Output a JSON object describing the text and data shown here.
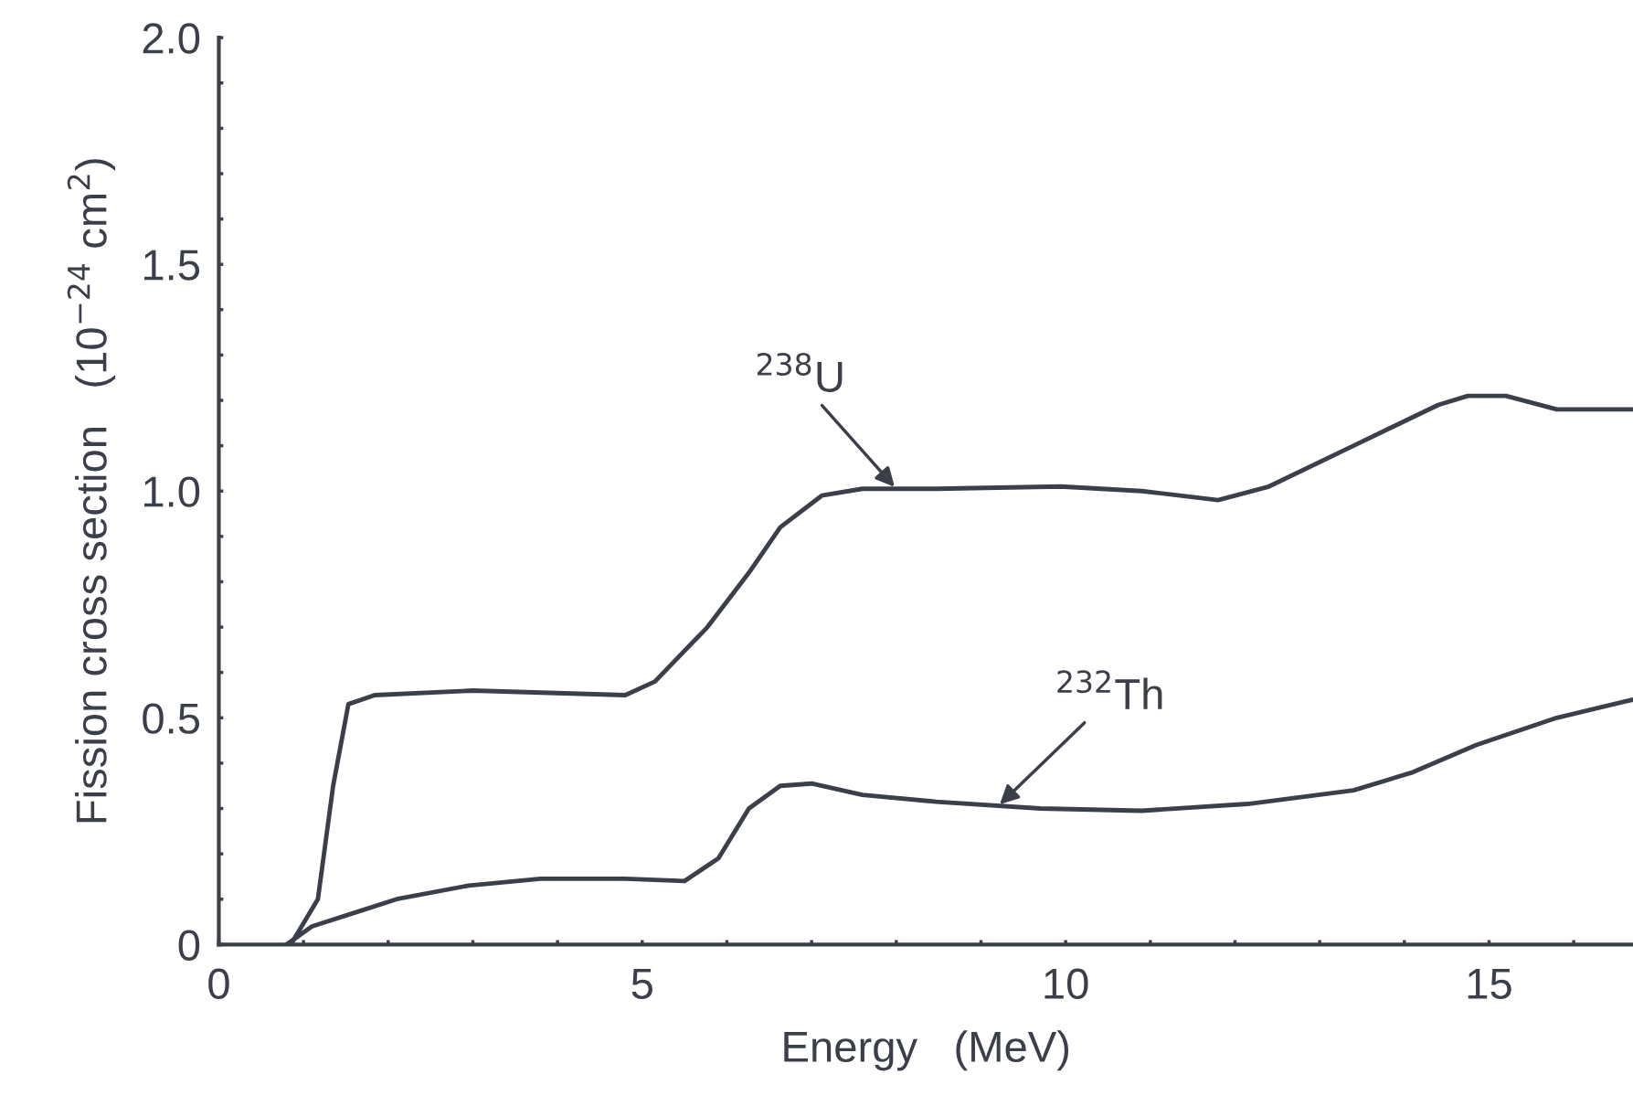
{
  "chart_data": {
    "type": "line",
    "xlabel": "Energy   (MeV)",
    "ylabel": "Fission cross section   (10$^{−24}$ cm$^{2}$)",
    "xlim": [
      0,
      16.7
    ],
    "ylim": [
      0,
      2.0
    ],
    "xticks": [
      0,
      {
        "value": 1,
        "label": null
      },
      {
        "value": 2,
        "label": null
      },
      {
        "value": 3,
        "label": null
      },
      {
        "value": 4,
        "label": null
      },
      5,
      {
        "value": 6,
        "label": null
      },
      {
        "value": 7,
        "label": null
      },
      {
        "value": 8,
        "label": null
      },
      {
        "value": 9,
        "label": null
      },
      10,
      {
        "value": 11,
        "label": null
      },
      {
        "value": 12,
        "label": null
      },
      {
        "value": 13,
        "label": null
      },
      {
        "value": 14,
        "label": null
      },
      15,
      {
        "value": 16,
        "label": null
      }
    ],
    "yticks": [
      0,
      {
        "value": 0.1,
        "label": null
      },
      {
        "value": 0.2,
        "label": null
      },
      {
        "value": 0.3,
        "label": null
      },
      {
        "value": 0.4,
        "label": null
      },
      0.5,
      {
        "value": 0.6,
        "label": null
      },
      {
        "value": 0.7,
        "label": null
      },
      {
        "value": 0.8,
        "label": null
      },
      {
        "value": 0.9,
        "label": null
      },
      {
        "value": 1.0,
        "label": "1.0"
      },
      {
        "value": 1.1,
        "label": null
      },
      {
        "value": 1.2,
        "label": null
      },
      {
        "value": 1.3,
        "label": null
      },
      {
        "value": 1.4,
        "label": null
      },
      1.5,
      {
        "value": 1.6,
        "label": null
      },
      {
        "value": 1.7,
        "label": null
      },
      {
        "value": 1.8,
        "label": null
      },
      {
        "value": 1.9,
        "label": null
      },
      {
        "value": 2.0,
        "label": "2.0"
      }
    ],
    "grid": false,
    "legend": false,
    "marker": "none",
    "line_style": "solid",
    "series": [
      {
        "color": "#3a3f4a",
        "x": [
          0.85,
          1.17,
          1.35,
          1.53,
          1.84,
          3.0,
          4.8,
          5.15,
          5.77,
          6.26,
          6.63,
          7.12,
          7.6,
          8.47,
          9.94,
          10.9,
          11.8,
          12.4,
          13.4,
          14.4,
          14.75,
          15.2,
          15.8,
          16.7
        ],
        "values": [
          0,
          0.1,
          0.35,
          0.53,
          0.55,
          0.56,
          0.55,
          0.58,
          0.7,
          0.82,
          0.92,
          0.99,
          1.005,
          1.005,
          1.01,
          1.0,
          0.98,
          1.01,
          1.1,
          1.19,
          1.21,
          1.21,
          1.18,
          1.18
        ]
      },
      {
        "color": "#3a3f4a",
        "x": [
          0.8,
          1.1,
          1.6,
          2.1,
          2.95,
          3.8,
          4.8,
          5.5,
          5.9,
          6.26,
          6.63,
          7.0,
          7.6,
          8.47,
          9.7,
          10.9,
          12.15,
          13.4,
          14.1,
          14.85,
          15.8,
          16.7
        ],
        "values": [
          0,
          0.04,
          0.07,
          0.1,
          0.13,
          0.145,
          0.145,
          0.14,
          0.19,
          0.3,
          0.35,
          0.355,
          0.33,
          0.315,
          0.3,
          0.295,
          0.31,
          0.34,
          0.38,
          0.44,
          0.5,
          0.54
        ]
      }
    ],
    "annotations": [
      {
        "text": "$^{238}$U",
        "x": 8.0,
        "y": 1.005
      },
      {
        "text": "$^{232}$Th",
        "x": 9.2,
        "y": 0.305
      }
    ]
  }
}
